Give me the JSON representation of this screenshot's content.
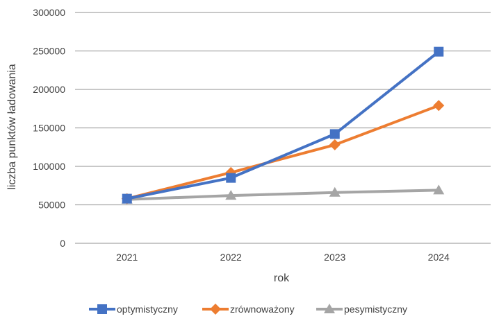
{
  "chart_data": {
    "type": "line",
    "categories": [
      "2021",
      "2022",
      "2023",
      "2024"
    ],
    "series": [
      {
        "name": "optymistyczny",
        "values": [
          58000,
          85000,
          142000,
          249000
        ],
        "color": "#4472C4",
        "marker": "square"
      },
      {
        "name": "zrównoważony",
        "values": [
          58000,
          92000,
          128000,
          179000
        ],
        "color": "#ED7D31",
        "marker": "diamond"
      },
      {
        "name": "pesymistyczny",
        "values": [
          57000,
          62000,
          66000,
          69000
        ],
        "color": "#A5A5A5",
        "marker": "triangle"
      }
    ],
    "xlabel": "rok",
    "ylabel": "liczba punktów ładowania",
    "ylim": [
      0,
      300000
    ],
    "yticks": [
      "0",
      "50000",
      "100000",
      "150000",
      "200000",
      "250000",
      "300000"
    ],
    "grid": true,
    "legend_position": "bottom"
  }
}
